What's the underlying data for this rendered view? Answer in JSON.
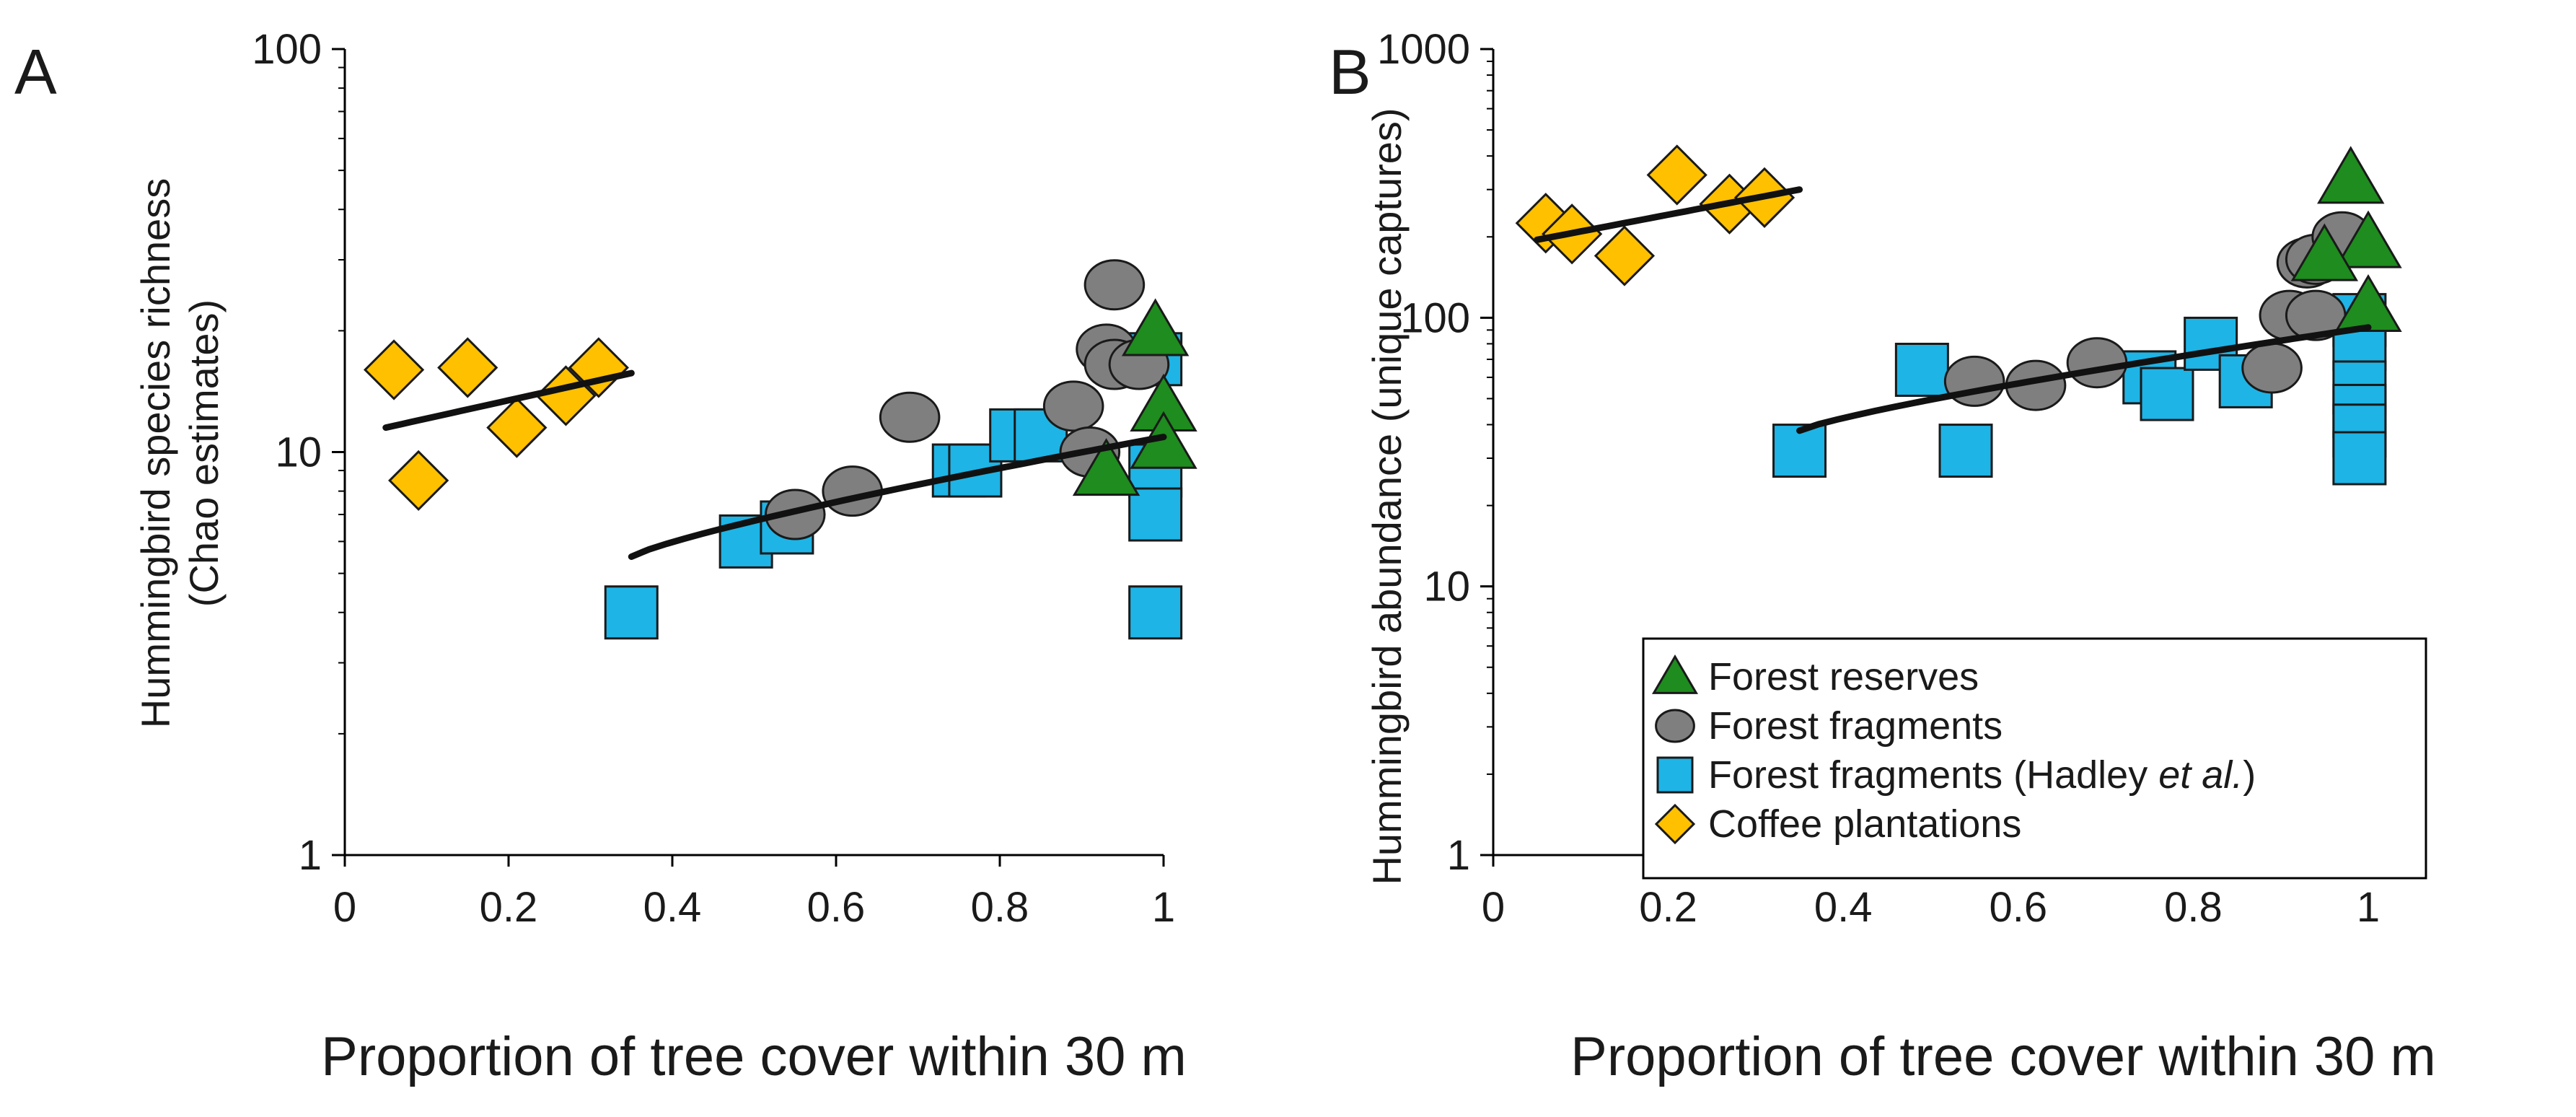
{
  "chart_data": [
    {
      "panel": "A",
      "type": "scatter",
      "title": "",
      "xlabel": "Proportion of tree cover within 30 m",
      "ylabel": [
        "Hummingbird species richness",
        "(Chao estimates)"
      ],
      "yscale": "log",
      "xlim": [
        0,
        1
      ],
      "ylim": [
        1,
        100
      ],
      "xticks": [
        "0",
        "0.2",
        "0.4",
        "0.6",
        "0.8",
        "1"
      ],
      "yticks": [
        "1",
        "10",
        "100"
      ],
      "grid": false,
      "series": [
        {
          "name": "Coffee plantations",
          "marker": "diamond",
          "color": "#FFC000",
          "points": [
            [
              0.06,
              16
            ],
            [
              0.09,
              8.5
            ],
            [
              0.15,
              16.2
            ],
            [
              0.21,
              11.5
            ],
            [
              0.27,
              13.8
            ],
            [
              0.31,
              16.2
            ]
          ]
        },
        {
          "name": "Forest fragments (Hadley et al.)",
          "marker": "square",
          "color": "#1EB4E6",
          "points": [
            [
              0.35,
              4
            ],
            [
              0.49,
              6
            ],
            [
              0.54,
              6.5
            ],
            [
              0.75,
              9
            ],
            [
              0.77,
              9
            ],
            [
              0.82,
              11
            ],
            [
              0.85,
              11
            ],
            [
              0.99,
              17
            ],
            [
              0.99,
              9
            ],
            [
              0.99,
              7
            ],
            [
              0.99,
              4
            ]
          ]
        },
        {
          "name": "Forest fragments",
          "marker": "circle",
          "color": "#7F7F7F",
          "points": [
            [
              0.55,
              7
            ],
            [
              0.62,
              8
            ],
            [
              0.69,
              12.2
            ],
            [
              0.89,
              13
            ],
            [
              0.91,
              10
            ],
            [
              0.93,
              18
            ],
            [
              0.94,
              16.5
            ],
            [
              0.97,
              16.5
            ],
            [
              0.94,
              26
            ]
          ]
        },
        {
          "name": "Forest reserves",
          "marker": "triangle",
          "color": "#1E8C1E",
          "points": [
            [
              0.93,
              9
            ],
            [
              0.99,
              20
            ],
            [
              1.0,
              13
            ],
            [
              1.0,
              10.5
            ]
          ]
        }
      ],
      "fits": [
        {
          "name": "coffee-fit",
          "x": [
            0.05,
            0.35
          ],
          "y": [
            11.5,
            15.7
          ]
        },
        {
          "name": "forest-fit",
          "x": [
            0.35,
            1.0
          ],
          "y": [
            5.5,
            10.9
          ]
        }
      ]
    },
    {
      "panel": "B",
      "type": "scatter",
      "title": "",
      "xlabel": "Proportion of tree cover within 30 m",
      "ylabel": [
        "Hummingbird abundance (unique captures)"
      ],
      "yscale": "log",
      "xlim": [
        0,
        1
      ],
      "ylim": [
        1,
        1000
      ],
      "xticks": [
        "0",
        "0.2",
        "0.4",
        "0.6",
        "0.8",
        "1"
      ],
      "yticks": [
        "1",
        "10",
        "100",
        "1000"
      ],
      "grid": false,
      "legend": {
        "placement": "lower-left",
        "entries": [
          {
            "label": "Forest reserves",
            "marker": "triangle",
            "color": "#1E8C1E"
          },
          {
            "label": "Forest fragments",
            "marker": "circle",
            "color": "#7F7F7F"
          },
          {
            "label": "Forest fragments (Hadley ",
            "label_italic": "et al.",
            "label_end": ")",
            "marker": "square",
            "color": "#1EB4E6"
          },
          {
            "label": "Coffee plantations",
            "marker": "diamond",
            "color": "#FFC000"
          }
        ]
      },
      "series": [
        {
          "name": "Coffee plantations",
          "marker": "diamond",
          "color": "#FFC000",
          "points": [
            [
              0.06,
              225
            ],
            [
              0.09,
              205
            ],
            [
              0.15,
              170
            ],
            [
              0.21,
              340
            ],
            [
              0.27,
              265
            ],
            [
              0.31,
              280
            ]
          ]
        },
        {
          "name": "Forest fragments (Hadley et al.)",
          "marker": "square",
          "color": "#1EB4E6",
          "points": [
            [
              0.35,
              32
            ],
            [
              0.49,
              64
            ],
            [
              0.54,
              32
            ],
            [
              0.75,
              60
            ],
            [
              0.77,
              52
            ],
            [
              0.82,
              80
            ],
            [
              0.86,
              58
            ],
            [
              0.99,
              98
            ],
            [
              0.99,
              80
            ],
            [
              0.99,
              55
            ],
            [
              0.99,
              45
            ],
            [
              0.99,
              38
            ],
            [
              0.99,
              30
            ]
          ]
        },
        {
          "name": "Forest fragments",
          "marker": "circle",
          "color": "#7F7F7F",
          "points": [
            [
              0.55,
              58
            ],
            [
              0.62,
              56
            ],
            [
              0.69,
              68
            ],
            [
              0.89,
              65
            ],
            [
              0.91,
              102
            ],
            [
              0.94,
              102
            ],
            [
              0.93,
              160
            ],
            [
              0.94,
              165
            ],
            [
              0.97,
              200
            ]
          ]
        },
        {
          "name": "Forest reserves",
          "marker": "triangle",
          "color": "#1E8C1E",
          "points": [
            [
              0.98,
              330
            ],
            [
              1.0,
              190
            ],
            [
              0.95,
              170
            ],
            [
              1.0,
              110
            ]
          ]
        }
      ],
      "fits": [
        {
          "name": "coffee-fit",
          "x": [
            0.05,
            0.35
          ],
          "y": [
            195,
            300
          ]
        },
        {
          "name": "forest-fit",
          "x": [
            0.35,
            1.0
          ],
          "y": [
            38,
            92
          ]
        }
      ]
    }
  ]
}
